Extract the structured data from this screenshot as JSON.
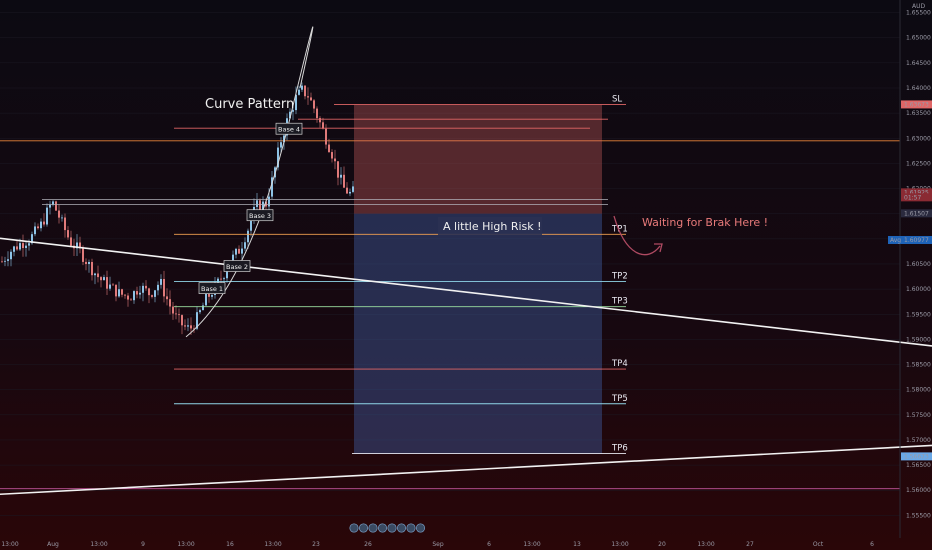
{
  "chart_data": {
    "type": "candlestick",
    "symbol_currency": "AUD",
    "ylim": [
      1.5505,
      1.6575
    ],
    "y_ticks": [
      "1.65500",
      "1.65000",
      "1.64500",
      "1.64000",
      "1.63500",
      "1.63000",
      "1.62500",
      "1.62000",
      "1.61500",
      "1.61000",
      "1.60500",
      "1.60000",
      "1.59500",
      "1.59000",
      "1.58500",
      "1.58000",
      "1.57500",
      "1.57000",
      "1.56500",
      "1.56000",
      "1.55500"
    ],
    "x_ticks": [
      "13:00",
      "Aug",
      "13:00",
      "9",
      "13:00",
      "16",
      "13:00",
      "23",
      "26",
      "Sep",
      "6",
      "13:00",
      "13",
      "13:00",
      "20",
      "13:00",
      "27",
      "Oct",
      "6"
    ],
    "price_badges": [
      {
        "label": "1.63673",
        "value": 1.63673,
        "color": "#e06666"
      },
      {
        "label": "1.61925",
        "value": 1.61925,
        "color": "#8a2a33"
      },
      {
        "label": "01:57",
        "value": 1.61825,
        "color": "#8a2a33"
      },
      {
        "label": "1.61507",
        "value": 1.61507,
        "color": "#2a2a3e"
      },
      {
        "label": "1.60977",
        "value": 1.60977,
        "color": "#1e63b8"
      },
      {
        "label": "1.56673",
        "value": 1.56673,
        "color": "#6aa8e6"
      }
    ],
    "avg_label": "Avg",
    "horizontal_lines": [
      {
        "value": 1.6295,
        "color": "#e8833a"
      },
      {
        "value": 1.5603,
        "color": "#c2559a"
      }
    ],
    "levels": [
      {
        "label": "SL",
        "value": 1.6367,
        "color": "#e06666"
      },
      {
        "label": "",
        "value": 1.6338,
        "color": "#e06666"
      },
      {
        "label": "TP1",
        "value": 1.6109,
        "color": "#f0a050"
      },
      {
        "label": "TP2",
        "value": 1.6015,
        "color": "#8fd6e8"
      },
      {
        "label": "TP3",
        "value": 1.5965,
        "color": "#9be0a0"
      },
      {
        "label": "",
        "value": 1.632,
        "color": "#e06666"
      },
      {
        "label": "TP4",
        "value": 1.5841,
        "color": "#e06666"
      },
      {
        "label": "TP5",
        "value": 1.5772,
        "color": "#8fd6e8"
      },
      {
        "label": "TP6",
        "value": 1.5673,
        "color": "#e8e8f0"
      }
    ],
    "trendlines": [
      {
        "from": [
          0,
          1.6101
        ],
        "to": [
          932,
          1.5887
        ]
      },
      {
        "from": [
          0,
          1.5592
        ],
        "to": [
          932,
          1.5689
        ]
      }
    ],
    "risk_box": {
      "top": 1.6367,
      "mid": 1.615,
      "bottom": 1.5673
    },
    "annotations": {
      "curve_pattern": "Curve Pattern",
      "risk_note": "A little High Risk !",
      "waiting": "Waiting for Brak Here !"
    },
    "bases": [
      "Base 1",
      "Base 2",
      "Base 3",
      "Base 4"
    ],
    "colors": {
      "up": "#8ec3e6",
      "down": "#e07a7a",
      "sl": "#e06666",
      "risk": "#e06666",
      "reward": "#3e5a9e"
    }
  }
}
